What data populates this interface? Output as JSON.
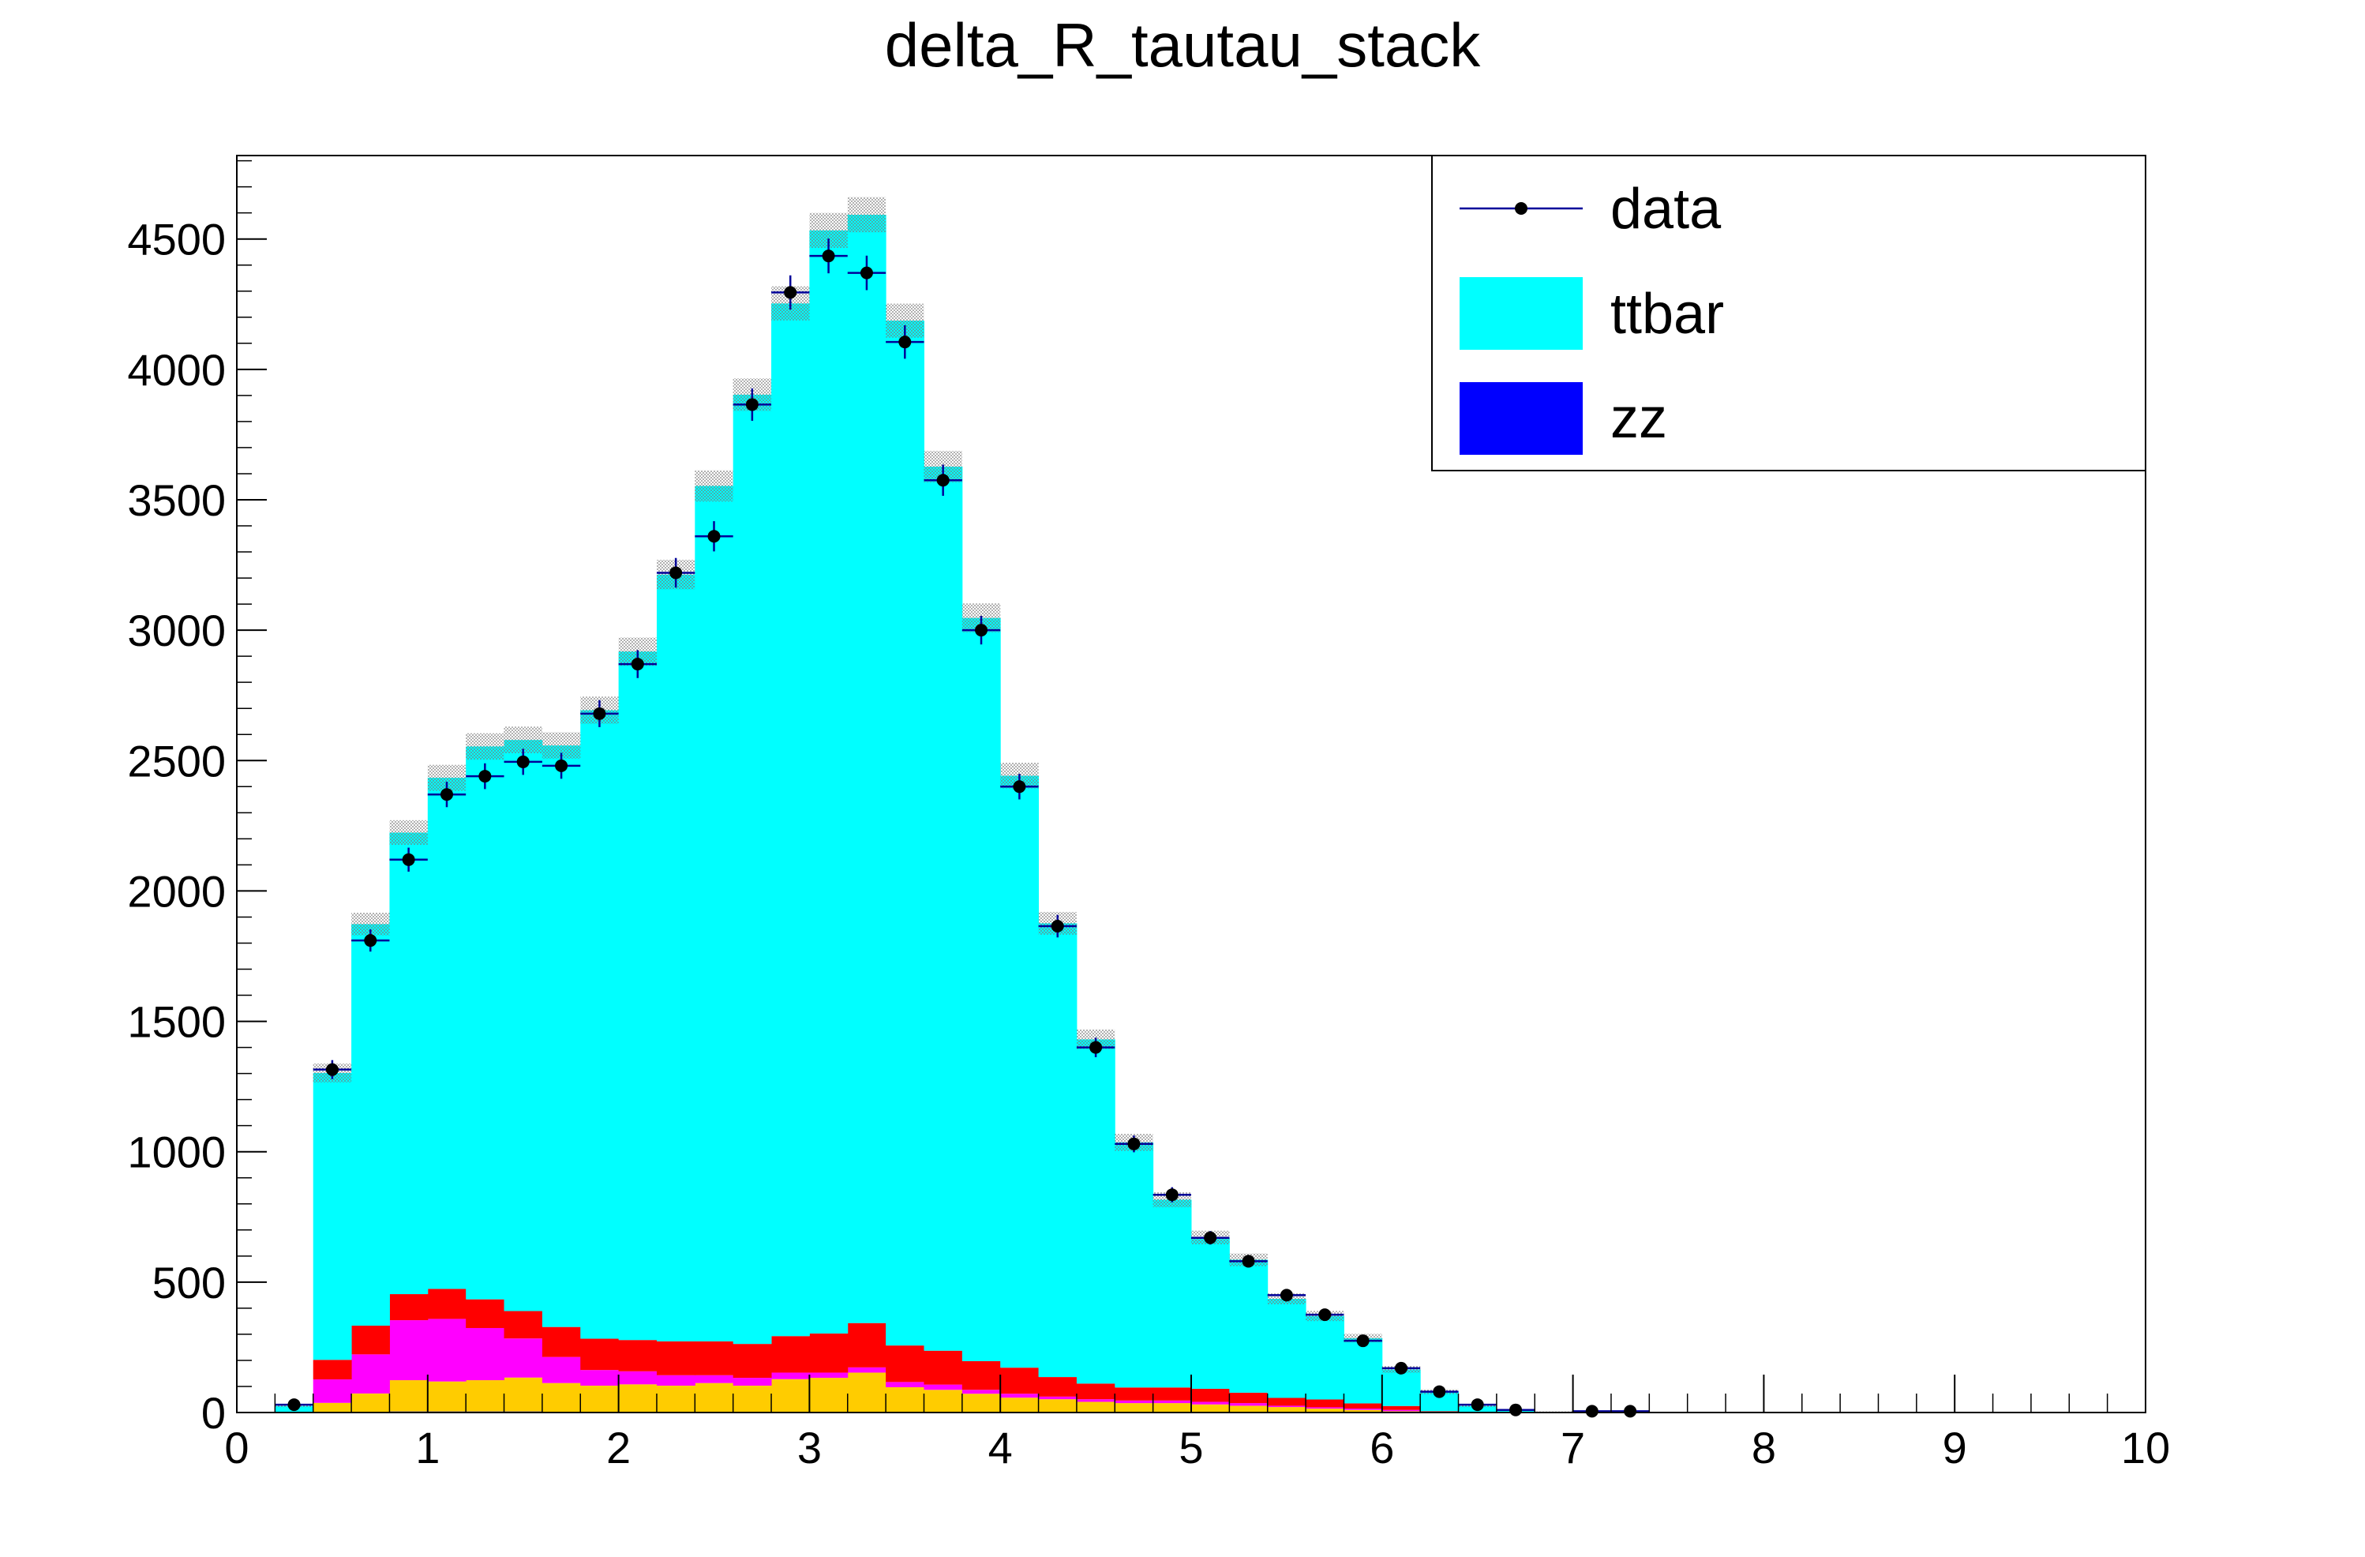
{
  "chart_data": {
    "type": "bar",
    "title": "delta_R_tautau_stack",
    "xlabel": "",
    "ylabel": "",
    "xlim": [
      0,
      10
    ],
    "ylim": [
      0,
      4820
    ],
    "bin_width": 0.2,
    "bin_starts": [
      0.2,
      0.4,
      0.6,
      0.8,
      1.0,
      1.2,
      1.4,
      1.6,
      1.8,
      2.0,
      2.2,
      2.4,
      2.6,
      2.8,
      3.0,
      3.2,
      3.4,
      3.6,
      3.8,
      4.0,
      4.2,
      4.4,
      4.6,
      4.8,
      5.0,
      5.2,
      5.4,
      5.6,
      5.8,
      6.0,
      6.2,
      6.4,
      6.6,
      6.8,
      7.0,
      7.2
    ],
    "x_ticks": [
      "0",
      "1",
      "2",
      "3",
      "4",
      "5",
      "6",
      "7",
      "8",
      "9",
      "10"
    ],
    "y_ticks": [
      "0",
      "500",
      "1000",
      "1500",
      "2000",
      "2500",
      "3000",
      "3500",
      "4000",
      "4500"
    ],
    "series": [
      {
        "name": "zz",
        "color": "#0000ff",
        "values": [
          0,
          2,
          3,
          4,
          4,
          4,
          4,
          3,
          3,
          3,
          3,
          3,
          3,
          3,
          3,
          3,
          2,
          2,
          2,
          2,
          1,
          1,
          1,
          1,
          1,
          1,
          1,
          0,
          0,
          0,
          0,
          0,
          0,
          0,
          0,
          0
        ]
      },
      {
        "color": "#ffcc00",
        "values": [
          0,
          35,
          70,
          120,
          115,
          120,
          130,
          110,
          100,
          105,
          100,
          110,
          100,
          125,
          130,
          150,
          95,
          85,
          70,
          55,
          50,
          40,
          35,
          35,
          30,
          25,
          20,
          15,
          10,
          5,
          0,
          0,
          0,
          0,
          0,
          0
        ]
      },
      {
        "color": "#ff00ff",
        "values": [
          0,
          90,
          150,
          230,
          240,
          200,
          150,
          100,
          60,
          50,
          40,
          30,
          30,
          25,
          20,
          20,
          20,
          20,
          15,
          15,
          10,
          10,
          10,
          10,
          10,
          10,
          5,
          5,
          5,
          5,
          0,
          0,
          0,
          0,
          0,
          0
        ]
      },
      {
        "color": "#ff0000",
        "values": [
          0,
          75,
          110,
          100,
          115,
          110,
          105,
          115,
          120,
          120,
          130,
          130,
          130,
          140,
          150,
          170,
          140,
          130,
          110,
          100,
          75,
          60,
          50,
          50,
          50,
          40,
          30,
          30,
          20,
          15,
          5,
          0,
          0,
          0,
          0,
          0
        ]
      },
      {
        "name": "ttbar",
        "color": "#00ffff",
        "values": [
          25,
          1100,
          1540,
          1770,
          1960,
          2120,
          2190,
          2230,
          2410,
          2640,
          2940,
          3280,
          3640,
          3960,
          4230,
          4250,
          3930,
          3390,
          2850,
          2270,
          1740,
          1320,
          940,
          720,
          580,
          510,
          380,
          320,
          250,
          140,
          75,
          25,
          10,
          3,
          0,
          0
        ]
      }
    ],
    "data_points": {
      "name": "data",
      "color": "#000000",
      "x": [
        0.3,
        0.5,
        0.7,
        0.9,
        1.1,
        1.3,
        1.5,
        1.7,
        1.9,
        2.1,
        2.3,
        2.5,
        2.7,
        2.9,
        3.1,
        3.3,
        3.5,
        3.7,
        3.9,
        4.1,
        4.3,
        4.5,
        4.7,
        4.9,
        5.1,
        5.3,
        5.5,
        5.7,
        5.9,
        6.1,
        6.3,
        6.5,
        6.7,
        7.1,
        7.3
      ],
      "y": [
        30,
        1315,
        1810,
        2120,
        2370,
        2440,
        2495,
        2480,
        2680,
        2870,
        3220,
        3360,
        3865,
        4295,
        4435,
        4370,
        4105,
        3575,
        3000,
        2400,
        1865,
        1400,
        1030,
        835,
        670,
        580,
        450,
        375,
        275,
        170,
        80,
        30,
        10,
        5,
        5
      ]
    },
    "legend": {
      "position": "top-right",
      "entries": [
        {
          "label": "data",
          "kind": "marker"
        },
        {
          "label": "ttbar",
          "kind": "fill",
          "color": "#00ffff"
        },
        {
          "label": "zz",
          "kind": "fill",
          "color": "#0000ff"
        }
      ]
    }
  }
}
